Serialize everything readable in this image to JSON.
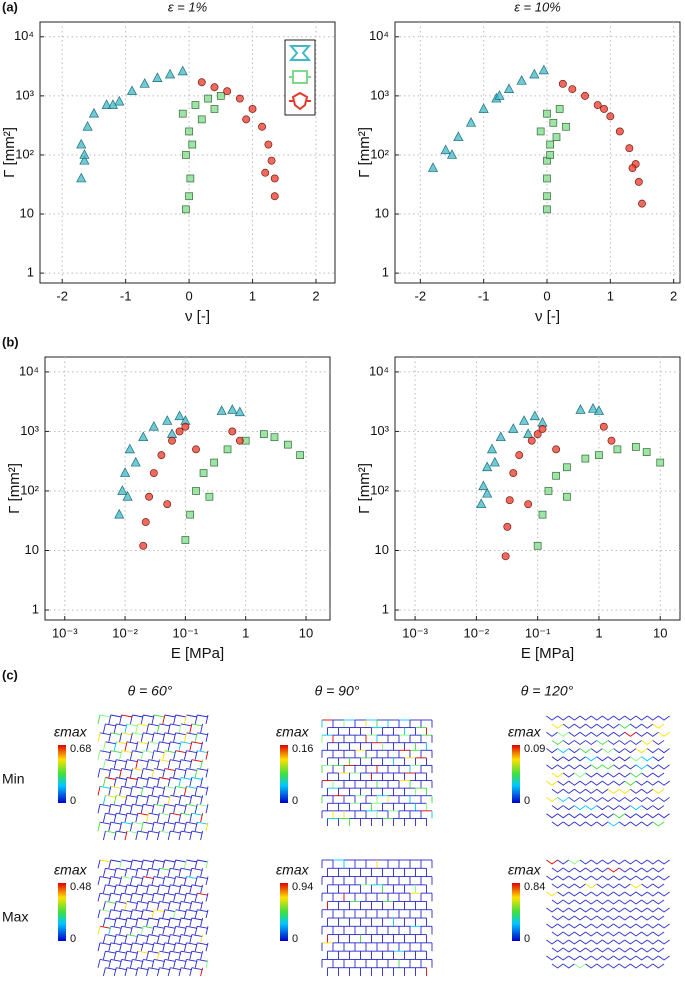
{
  "chart_data": [
    {
      "type": "scatter",
      "panel": "(a)",
      "title": "ε = 1%",
      "xlabel": "ν [-]",
      "ylabel": "Γ [mm²]",
      "xscale": "linear",
      "yscale": "log",
      "grid": true,
      "legend": "upper right",
      "xlim": [
        -2.35,
        2.3
      ],
      "ylim": [
        0.68,
        17800
      ],
      "xticks": [
        -2,
        -1,
        0,
        1,
        2
      ],
      "yticks": [
        1,
        10,
        {
          "value": 100,
          "label": "10²"
        },
        {
          "value": 1000,
          "label": "10³"
        },
        {
          "value": 10000,
          "label": "10⁴"
        }
      ],
      "series": [
        {
          "color": "#3fb8c8",
          "marker": "triangle",
          "x": [
            -1.7,
            -1.65,
            -1.7,
            -1.6,
            -1.5,
            -1.3,
            -1.1,
            -0.9,
            -0.7,
            -0.5,
            -0.3,
            -0.1,
            -1.65,
            -1.2
          ],
          "y": [
            40,
            80,
            150,
            300,
            500,
            700,
            800,
            1200,
            1600,
            2000,
            2300,
            2600,
            100,
            700
          ]
        },
        {
          "color": "#7fd98a",
          "marker": "square",
          "x": [
            -0.05,
            0,
            0.02,
            -0.05,
            0.05,
            0,
            -0.1,
            0.1,
            0.3,
            0.5,
            0.2,
            0.4
          ],
          "y": [
            12,
            20,
            40,
            100,
            150,
            250,
            500,
            700,
            900,
            1000,
            400,
            600
          ]
        },
        {
          "color": "#e8382a",
          "marker": "circle",
          "x": [
            0.2,
            0.4,
            0.6,
            0.8,
            1.0,
            1.15,
            1.25,
            1.3,
            1.35,
            1.35,
            1.2,
            0.9
          ],
          "y": [
            1700,
            1400,
            1200,
            900,
            600,
            300,
            150,
            80,
            40,
            20,
            50,
            400
          ]
        }
      ]
    },
    {
      "type": "scatter",
      "title": "ε = 10%",
      "xlabel": "ν [-]",
      "ylabel": "Γ [mm²]",
      "xscale": "linear",
      "yscale": "log",
      "grid": true,
      "xlim": [
        -2.4,
        2.1
      ],
      "ylim": [
        0.68,
        17800
      ],
      "xticks": [
        -2,
        -1,
        0,
        1,
        2
      ],
      "yticks": [
        1,
        10,
        {
          "value": 100,
          "label": "10²"
        },
        {
          "value": 1000,
          "label": "10³"
        },
        {
          "value": 10000,
          "label": "10⁴"
        }
      ],
      "series": [
        {
          "color": "#3fb8c8",
          "marker": "triangle",
          "x": [
            -1.8,
            -1.6,
            -1.4,
            -1.2,
            -1.0,
            -0.8,
            -0.6,
            -0.4,
            -0.2,
            -0.05,
            -1.5,
            -0.75
          ],
          "y": [
            60,
            120,
            200,
            350,
            600,
            900,
            1300,
            1800,
            2300,
            2700,
            100,
            1000
          ]
        },
        {
          "color": "#7fd98a",
          "marker": "square",
          "x": [
            0,
            0,
            0,
            0,
            0.05,
            -0.1,
            0.1,
            0,
            0.2,
            0.3,
            0.15,
            0.05
          ],
          "y": [
            12,
            20,
            40,
            80,
            150,
            250,
            350,
            500,
            600,
            300,
            200,
            100
          ]
        },
        {
          "color": "#e8382a",
          "marker": "circle",
          "x": [
            0.25,
            0.4,
            0.6,
            0.8,
            1.0,
            1.15,
            1.3,
            1.4,
            1.45,
            1.5,
            0.9,
            1.35
          ],
          "y": [
            1600,
            1300,
            1000,
            700,
            450,
            250,
            130,
            70,
            35,
            15,
            600,
            60
          ]
        }
      ]
    },
    {
      "type": "scatter",
      "panel": "(b)",
      "xlabel": "E [MPa]",
      "ylabel": "Γ [mm²]",
      "xscale": "log",
      "yscale": "log",
      "grid": true,
      "xlim": [
        0.00047,
        25
      ],
      "ylim": [
        0.68,
        17800
      ],
      "xticks": [
        {
          "value": 0.001,
          "label": "10⁻³"
        },
        {
          "value": 0.01,
          "label": "10⁻²"
        },
        {
          "value": 0.1,
          "label": "10⁻¹"
        },
        1,
        10
      ],
      "yticks": [
        1,
        10,
        {
          "value": 100,
          "label": "10²"
        },
        {
          "value": 1000,
          "label": "10³"
        },
        {
          "value": 10000,
          "label": "10⁴"
        }
      ],
      "series": [
        {
          "color": "#3fb8c8",
          "marker": "triangle",
          "x": [
            0.008,
            0.009,
            0.01,
            0.012,
            0.02,
            0.03,
            0.05,
            0.08,
            0.1,
            0.011,
            0.015,
            0.06,
            0.4,
            0.6,
            0.8
          ],
          "y": [
            40,
            100,
            200,
            500,
            800,
            1200,
            1500,
            1800,
            1500,
            80,
            300,
            900,
            2200,
            2300,
            2100
          ]
        },
        {
          "color": "#7fd98a",
          "marker": "square",
          "x": [
            0.1,
            0.12,
            0.15,
            0.2,
            0.3,
            0.5,
            1,
            2,
            3,
            5,
            8,
            0.25
          ],
          "y": [
            15,
            40,
            100,
            200,
            300,
            500,
            700,
            900,
            800,
            600,
            400,
            80
          ]
        },
        {
          "color": "#e8382a",
          "marker": "circle",
          "x": [
            0.02,
            0.022,
            0.025,
            0.03,
            0.04,
            0.06,
            0.08,
            0.1,
            0.15,
            0.6,
            0.8,
            0.05
          ],
          "y": [
            12,
            30,
            80,
            200,
            400,
            700,
            1000,
            1200,
            500,
            1000,
            700,
            60
          ]
        }
      ]
    },
    {
      "type": "scatter",
      "xlabel": "E [MPa]",
      "ylabel": "Γ [mm²]",
      "xscale": "log",
      "yscale": "log",
      "grid": true,
      "xlim": [
        0.00047,
        21
      ],
      "ylim": [
        0.68,
        17800
      ],
      "xticks": [
        {
          "value": 0.001,
          "label": "10⁻³"
        },
        {
          "value": 0.01,
          "label": "10⁻²"
        },
        {
          "value": 0.1,
          "label": "10⁻¹"
        },
        1,
        10
      ],
      "yticks": [
        1,
        10,
        {
          "value": 100,
          "label": "10²"
        },
        {
          "value": 1000,
          "label": "10³"
        },
        {
          "value": 10000,
          "label": "10⁴"
        }
      ],
      "series": [
        {
          "color": "#3fb8c8",
          "marker": "triangle",
          "x": [
            0.012,
            0.013,
            0.015,
            0.018,
            0.025,
            0.04,
            0.06,
            0.09,
            0.12,
            0.015,
            0.02,
            0.07,
            0.5,
            0.8,
            1.0
          ],
          "y": [
            60,
            120,
            250,
            500,
            800,
            1100,
            1500,
            1800,
            1400,
            90,
            300,
            900,
            2300,
            2400,
            2200
          ]
        },
        {
          "color": "#7fd98a",
          "marker": "square",
          "x": [
            0.1,
            0.12,
            0.15,
            0.2,
            0.3,
            0.6,
            1,
            2,
            4,
            6,
            10,
            0.3
          ],
          "y": [
            12,
            40,
            100,
            180,
            250,
            350,
            400,
            500,
            550,
            450,
            300,
            80
          ]
        },
        {
          "color": "#e8382a",
          "marker": "circle",
          "x": [
            0.03,
            0.032,
            0.035,
            0.04,
            0.05,
            0.08,
            0.1,
            0.12,
            0.2,
            1.2,
            1.6,
            0.07
          ],
          "y": [
            8,
            25,
            70,
            200,
            400,
            700,
            900,
            1100,
            500,
            1200,
            700,
            60
          ]
        }
      ]
    }
  ],
  "lattice_panels": {
    "label": "(c)",
    "columns": [
      "θ = 60°",
      "θ = 90°",
      "θ = 120°"
    ],
    "rows": [
      "Min",
      "Max"
    ],
    "colorbar_label": "εmax",
    "colorbar_min": 0,
    "colorbar_max": [
      [
        0.68,
        0.16,
        0.09
      ],
      [
        0.48,
        0.94,
        0.84
      ]
    ]
  }
}
